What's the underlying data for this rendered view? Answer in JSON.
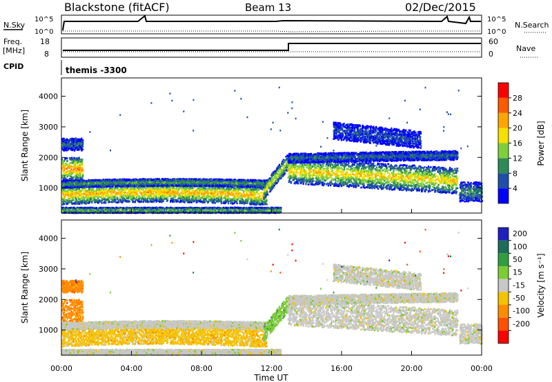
{
  "header": {
    "radar_label": "Blackstone (fitACF)",
    "beam_label": "Beam 13",
    "date_label": "02/Dec/2015"
  },
  "top_panels": {
    "nsky_label": "N.Sky",
    "nsearch_label": "N.Search",
    "counts_tick_top": "10^5",
    "counts_tick_bottom": "10^0",
    "freq_label": "Freq.",
    "freq_unit": "[MHz]",
    "freq_ticks": [
      "18",
      "8"
    ],
    "nave_label": "Nave",
    "nave_ticks": [
      "60",
      "0"
    ],
    "cpid_label": "CPID",
    "cpid_value": "themis -3300"
  },
  "chart_data": [
    {
      "type": "heatmap",
      "name": "power",
      "ylabel": "Slant Range [km]",
      "xlabel": "",
      "x_range_hours": [
        0,
        24
      ],
      "ylim": [
        180,
        4600
      ],
      "y_ticks": [
        1000,
        2000,
        3000,
        4000
      ],
      "colorbar": {
        "label": "Power [dB]",
        "ticks": [
          4,
          8,
          12,
          16,
          20,
          24,
          28
        ],
        "range": [
          0,
          32
        ]
      }
    },
    {
      "type": "heatmap",
      "name": "velocity",
      "ylabel": "Slant Range [km]",
      "xlabel": "Time UT",
      "x_ticks": [
        "00:00",
        "04:00",
        "08:00",
        "12:00",
        "16:00",
        "20:00",
        "00:00"
      ],
      "x_range_hours": [
        0,
        24
      ],
      "ylim": [
        180,
        4600
      ],
      "y_ticks": [
        1000,
        2000,
        3000,
        4000
      ],
      "colorbar": {
        "label": "Velocity [m s⁻¹]",
        "ticks": [
          200,
          100,
          50,
          15,
          -15,
          -50,
          -100,
          -200
        ]
      }
    }
  ],
  "colors": {
    "power_scale": [
      "#0000ff",
      "#1f4fa8",
      "#2e8b57",
      "#7ecf3b",
      "#f5e000",
      "#ffa500",
      "#ff5a00",
      "#ff0000"
    ],
    "velocity_scale": [
      "#2020c0",
      "#1c6e5a",
      "#2f9e3f",
      "#7ccc33",
      "#c8c8c8",
      "#f5c200",
      "#ff8c00",
      "#ff5000",
      "#ff0000"
    ]
  }
}
